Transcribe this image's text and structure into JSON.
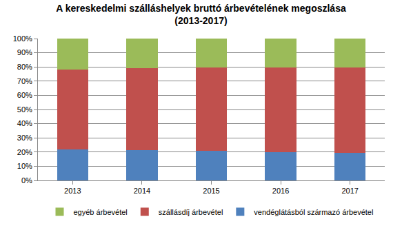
{
  "chart_data": {
    "type": "bar",
    "stacked": true,
    "title": "A kereskedelmi szálláshelyek bruttó árbevételének megoszlása\n(2013-2017)",
    "categories": [
      "2013",
      "2014",
      "2015",
      "2016",
      "2017"
    ],
    "series": [
      {
        "name": "vendéglátásból származó árbevétel",
        "color": "#4f81bd",
        "values": [
          22,
          21.5,
          21,
          20,
          19.5
        ]
      },
      {
        "name": "szállásdíj árbevétel",
        "color": "#c0504d",
        "values": [
          56,
          57.5,
          58.5,
          59.5,
          60
        ]
      },
      {
        "name": "egyéb árbevétel",
        "color": "#9bbb59",
        "values": [
          22,
          21,
          20.5,
          20.5,
          20.5
        ]
      }
    ],
    "ylim": [
      0,
      100
    ],
    "yticks": [
      {
        "value": 0,
        "label": "0%"
      },
      {
        "value": 10,
        "label": "10%"
      },
      {
        "value": 20,
        "label": "20%"
      },
      {
        "value": 30,
        "label": "30%"
      },
      {
        "value": 40,
        "label": "40%"
      },
      {
        "value": 50,
        "label": "50%"
      },
      {
        "value": 60,
        "label": "60%"
      },
      {
        "value": 70,
        "label": "70%"
      },
      {
        "value": 80,
        "label": "80%"
      },
      {
        "value": 90,
        "label": "90%"
      },
      {
        "value": 100,
        "label": "100%"
      }
    ],
    "grid": true,
    "legend": "bottom"
  }
}
